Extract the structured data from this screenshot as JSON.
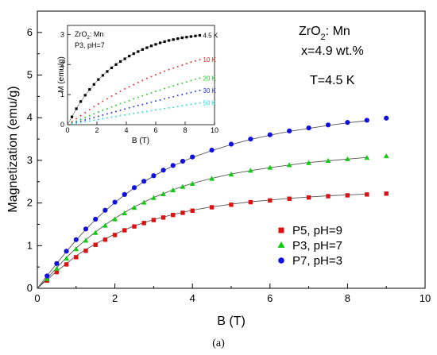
{
  "chart_data": [
    {
      "type": "scatter",
      "xlabel": "B (T)",
      "ylabel": "Magnetization (emu/g)",
      "xlim": [
        0,
        10
      ],
      "ylim": [
        0,
        6.5
      ],
      "xticks": [
        "0",
        "2",
        "4",
        "6",
        "8",
        "10"
      ],
      "yticks": [
        "0",
        "1",
        "2",
        "3",
        "4",
        "5",
        "6"
      ],
      "annotations": {
        "material_prefix": "ZrO",
        "material_sub": "2",
        "material_suffix": ": Mn",
        "concentration": "x=4.9 wt.%",
        "temperature": "T=4.5 K"
      },
      "legend_position": "bottom-right",
      "x": [
        0.25,
        0.5,
        0.75,
        1.0,
        1.25,
        1.5,
        1.75,
        2.0,
        2.25,
        2.5,
        2.75,
        3.0,
        3.25,
        3.5,
        3.75,
        4.0,
        4.5,
        5.0,
        5.5,
        6.0,
        6.5,
        7.0,
        7.5,
        8.0,
        8.5,
        9.0
      ],
      "series": [
        {
          "name": "P5, pH=9",
          "marker": "square",
          "color": "#dd1111",
          "values": [
            0.18,
            0.38,
            0.56,
            0.73,
            0.88,
            1.02,
            1.14,
            1.25,
            1.36,
            1.45,
            1.53,
            1.6,
            1.66,
            1.72,
            1.77,
            1.82,
            1.9,
            1.96,
            2.02,
            2.06,
            2.1,
            2.13,
            2.16,
            2.18,
            2.2,
            2.22
          ]
        },
        {
          "name": "P3, pH=7",
          "marker": "triangle",
          "color": "#11cc11",
          "values": [
            0.22,
            0.46,
            0.7,
            0.92,
            1.12,
            1.3,
            1.47,
            1.62,
            1.76,
            1.89,
            2.01,
            2.12,
            2.21,
            2.3,
            2.38,
            2.45,
            2.57,
            2.67,
            2.76,
            2.83,
            2.89,
            2.94,
            2.99,
            3.03,
            3.06,
            3.1
          ]
        },
        {
          "name": "P7, pH=3",
          "marker": "circle",
          "color": "#1111dd",
          "values": [
            0.29,
            0.58,
            0.87,
            1.14,
            1.39,
            1.62,
            1.83,
            2.02,
            2.2,
            2.36,
            2.51,
            2.64,
            2.77,
            2.88,
            2.98,
            3.08,
            3.24,
            3.38,
            3.5,
            3.6,
            3.69,
            3.76,
            3.83,
            3.89,
            3.94,
            3.99
          ]
        }
      ],
      "fits": [
        {
          "y": [
            0,
            0.2,
            0.4,
            0.58,
            0.76,
            0.91,
            1.04,
            1.16,
            1.27,
            1.37,
            1.46,
            1.54,
            1.61,
            1.67,
            1.73,
            1.78,
            1.83,
            1.91,
            1.97,
            2.03,
            2.07,
            2.11,
            2.14,
            2.17,
            2.19,
            2.21
          ]
        },
        {
          "y": [
            0,
            0.23,
            0.48,
            0.72,
            0.94,
            1.14,
            1.32,
            1.49,
            1.64,
            1.78,
            1.91,
            2.02,
            2.13,
            2.22,
            2.31,
            2.39,
            2.46,
            2.58,
            2.68,
            2.76,
            2.83,
            2.89,
            2.95,
            2.99,
            3.03,
            3.07
          ]
        },
        {
          "y": [
            0,
            0.29,
            0.58,
            0.86,
            1.13,
            1.38,
            1.61,
            1.82,
            2.01,
            2.19,
            2.35,
            2.5,
            2.63,
            2.76,
            2.87,
            2.97,
            3.07,
            3.23,
            3.37,
            3.49,
            3.59,
            3.68,
            3.75,
            3.82,
            3.88,
            3.93
          ]
        }
      ]
    },
    {
      "type": "scatter",
      "xlabel": "B (T)",
      "ylabel": "M (emu/g)",
      "xlim": [
        0,
        10
      ],
      "ylim": [
        0,
        3.3
      ],
      "xticks": [
        "0",
        "2",
        "4",
        "6",
        "8",
        "10"
      ],
      "yticks": [
        "0",
        "1",
        "2",
        "3"
      ],
      "annotations": {
        "material_prefix": "ZrO",
        "material_sub": "2",
        "material_suffix": ": Mn",
        "sample": "P3, pH=7"
      },
      "x": [
        0.3,
        0.6,
        0.9,
        1.2,
        1.5,
        1.8,
        2.1,
        2.4,
        2.7,
        3.0,
        3.3,
        3.6,
        3.9,
        4.2,
        4.5,
        4.8,
        5.1,
        5.4,
        5.7,
        6.0,
        6.3,
        6.6,
        6.9,
        7.2,
        7.5,
        7.8,
        8.1,
        8.4,
        8.7,
        9.0
      ],
      "series": [
        {
          "name": "4.5 K",
          "color": "#000000",
          "marker": "square",
          "values": [
            0.26,
            0.53,
            0.77,
            0.98,
            1.17,
            1.34,
            1.5,
            1.64,
            1.77,
            1.89,
            2.0,
            2.1,
            2.19,
            2.28,
            2.36,
            2.43,
            2.5,
            2.56,
            2.62,
            2.67,
            2.72,
            2.76,
            2.8,
            2.83,
            2.86,
            2.89,
            2.91,
            2.93,
            2.95,
            2.97
          ]
        },
        {
          "name": "10 K",
          "color": "#ee2222",
          "marker": "dot",
          "values": [
            0.1,
            0.2,
            0.3,
            0.4,
            0.5,
            0.6,
            0.69,
            0.78,
            0.86,
            0.95,
            1.03,
            1.11,
            1.19,
            1.26,
            1.33,
            1.4,
            1.47,
            1.54,
            1.6,
            1.66,
            1.72,
            1.78,
            1.83,
            1.88,
            1.93,
            1.98,
            2.03,
            2.08,
            2.12,
            2.16
          ]
        },
        {
          "name": "20 K",
          "color": "#22cc22",
          "marker": "dot",
          "values": [
            0.06,
            0.12,
            0.18,
            0.24,
            0.3,
            0.36,
            0.42,
            0.48,
            0.53,
            0.59,
            0.64,
            0.7,
            0.75,
            0.8,
            0.86,
            0.91,
            0.96,
            1.01,
            1.06,
            1.11,
            1.15,
            1.2,
            1.25,
            1.29,
            1.34,
            1.38,
            1.42,
            1.47,
            1.51,
            1.55
          ]
        },
        {
          "name": "30 K",
          "color": "#2233dd",
          "marker": "dot",
          "values": [
            0.04,
            0.08,
            0.12,
            0.16,
            0.2,
            0.24,
            0.28,
            0.32,
            0.36,
            0.4,
            0.44,
            0.48,
            0.52,
            0.56,
            0.6,
            0.64,
            0.67,
            0.71,
            0.75,
            0.79,
            0.82,
            0.86,
            0.9,
            0.93,
            0.97,
            1.0,
            1.04,
            1.07,
            1.11,
            1.14
          ]
        },
        {
          "name": "50 K",
          "color": "#22dddd",
          "marker": "dot",
          "values": [
            0.025,
            0.05,
            0.075,
            0.1,
            0.125,
            0.15,
            0.175,
            0.2,
            0.225,
            0.25,
            0.275,
            0.3,
            0.325,
            0.35,
            0.375,
            0.4,
            0.42,
            0.44,
            0.465,
            0.49,
            0.51,
            0.535,
            0.56,
            0.58,
            0.605,
            0.63,
            0.65,
            0.675,
            0.7,
            0.72
          ]
        }
      ],
      "fit": {
        "y": [
          0,
          0.26,
          0.53,
          0.77,
          0.98,
          1.17,
          1.34,
          1.5,
          1.64,
          1.77,
          1.89,
          2.0,
          2.1,
          2.19,
          2.28,
          2.36,
          2.43,
          2.5,
          2.56,
          2.62,
          2.67,
          2.72,
          2.76,
          2.8,
          2.83,
          2.86,
          2.89,
          2.91,
          2.93,
          2.95,
          2.97
        ]
      }
    }
  ],
  "caption": "(a)"
}
